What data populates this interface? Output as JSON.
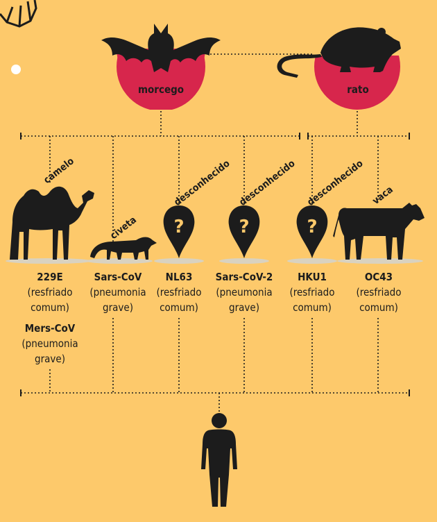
{
  "hosts": {
    "bat": "morcego",
    "rat": "rato"
  },
  "intermediates": [
    {
      "label": "camelo"
    },
    {
      "label": "civeta"
    },
    {
      "label": "desconhecido"
    },
    {
      "label": "desconhecido"
    },
    {
      "label": "desconhecido"
    },
    {
      "label": "vaca"
    }
  ],
  "viruses": [
    {
      "name": "229E",
      "desc1": "(resfriado",
      "desc2": "comum)"
    },
    {
      "name": "Sars-CoV",
      "desc1": "(pneumonia",
      "desc2": "grave)"
    },
    {
      "name": "NL63",
      "desc1": "(resfriado",
      "desc2": "comum)"
    },
    {
      "name": "Sars-CoV-2",
      "desc1": "(pneumonia",
      "desc2": "grave)"
    },
    {
      "name": "HKU1",
      "desc1": "(resfriado",
      "desc2": "comum)"
    },
    {
      "name": "OC43",
      "desc1": "(resfriado",
      "desc2": "comum)"
    }
  ],
  "extra_virus": {
    "name": "Mers-CoV",
    "desc1": "(pneumonia",
    "desc2": "grave)"
  },
  "marker_symbol": "?",
  "colors": {
    "background": "#FDC96B",
    "host_circle": "#D7264C",
    "silhouette": "#1c1c1c",
    "shadow": "#D9D2C0"
  }
}
